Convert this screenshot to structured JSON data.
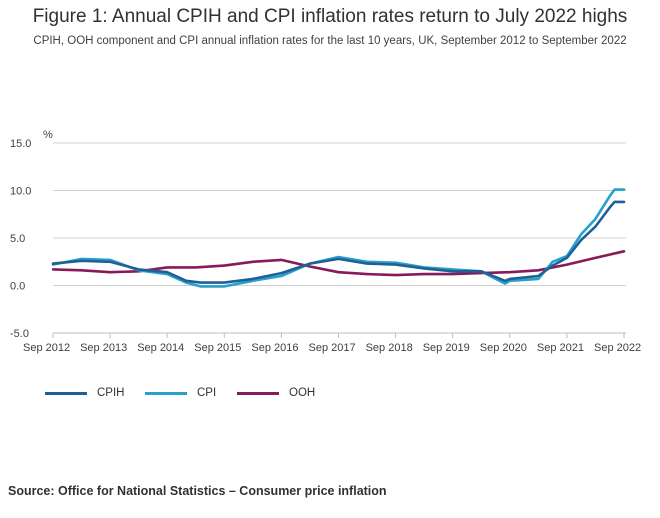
{
  "header": {
    "title": "Figure 1: Annual CPIH and CPI inflation rates return to July 2022 highs",
    "subtitle": "CPIH, OOH component and CPI annual inflation rates for the last 10 years, UK, September 2012 to September 2022"
  },
  "source": "Source: Office for National Statistics – Consumer price inflation",
  "colors": {
    "CPIH": "#206095",
    "CPI": "#27a0cc",
    "OOH": "#871a5b",
    "grid": "#d0d0d0",
    "axis": "#bebebe"
  },
  "chart_data": {
    "type": "line",
    "ylabel": "%",
    "ylim": [
      -5.0,
      15.0
    ],
    "yticks": [
      "15.0",
      "10.0",
      "5.0",
      "0.0",
      "-5.0"
    ],
    "xticks": [
      "Sep 2012",
      "Sep 2013",
      "Sep 2014",
      "Sep 2015",
      "Sep 2016",
      "Sep 2017",
      "Sep 2018",
      "Sep 2019",
      "Sep 2020",
      "Sep 2021",
      "Sep 2022"
    ],
    "legend_placement": "bottom-left",
    "grid": true,
    "series": [
      {
        "name": "CPIH",
        "x": [
          "2012-09",
          "2013-03",
          "2013-09",
          "2014-03",
          "2014-09",
          "2015-01",
          "2015-04",
          "2015-09",
          "2016-03",
          "2016-09",
          "2017-03",
          "2017-09",
          "2018-03",
          "2018-09",
          "2019-03",
          "2019-09",
          "2020-03",
          "2020-08",
          "2020-09",
          "2021-03",
          "2021-06",
          "2021-09",
          "2021-12",
          "2022-03",
          "2022-06",
          "2022-07",
          "2022-09"
        ],
        "values": [
          2.3,
          2.6,
          2.5,
          1.7,
          1.4,
          0.5,
          0.3,
          0.3,
          0.7,
          1.3,
          2.3,
          2.8,
          2.3,
          2.2,
          1.8,
          1.5,
          1.5,
          0.5,
          0.7,
          1.0,
          2.1,
          2.9,
          4.8,
          6.2,
          8.2,
          8.8,
          8.8
        ]
      },
      {
        "name": "CPI",
        "x": [
          "2012-09",
          "2013-03",
          "2013-09",
          "2014-03",
          "2014-09",
          "2015-01",
          "2015-04",
          "2015-09",
          "2016-03",
          "2016-09",
          "2017-03",
          "2017-09",
          "2018-03",
          "2018-09",
          "2019-03",
          "2019-09",
          "2020-03",
          "2020-08",
          "2020-09",
          "2021-03",
          "2021-06",
          "2021-09",
          "2021-12",
          "2022-03",
          "2022-06",
          "2022-07",
          "2022-09"
        ],
        "values": [
          2.2,
          2.8,
          2.7,
          1.6,
          1.2,
          0.3,
          -0.1,
          -0.1,
          0.5,
          1.0,
          2.3,
          3.0,
          2.5,
          2.4,
          1.9,
          1.7,
          1.5,
          0.2,
          0.5,
          0.7,
          2.5,
          3.1,
          5.4,
          7.0,
          9.4,
          10.1,
          10.1
        ]
      },
      {
        "name": "OOH",
        "x": [
          "2012-09",
          "2013-03",
          "2013-09",
          "2014-03",
          "2014-09",
          "2015-03",
          "2015-09",
          "2016-03",
          "2016-09",
          "2017-03",
          "2017-09",
          "2018-03",
          "2018-09",
          "2019-03",
          "2019-09",
          "2020-03",
          "2020-09",
          "2021-03",
          "2021-09",
          "2022-03",
          "2022-09"
        ],
        "values": [
          1.7,
          1.6,
          1.4,
          1.5,
          1.9,
          1.9,
          2.1,
          2.5,
          2.7,
          2.0,
          1.4,
          1.2,
          1.1,
          1.2,
          1.2,
          1.3,
          1.4,
          1.6,
          2.2,
          2.9,
          3.6
        ]
      }
    ]
  }
}
